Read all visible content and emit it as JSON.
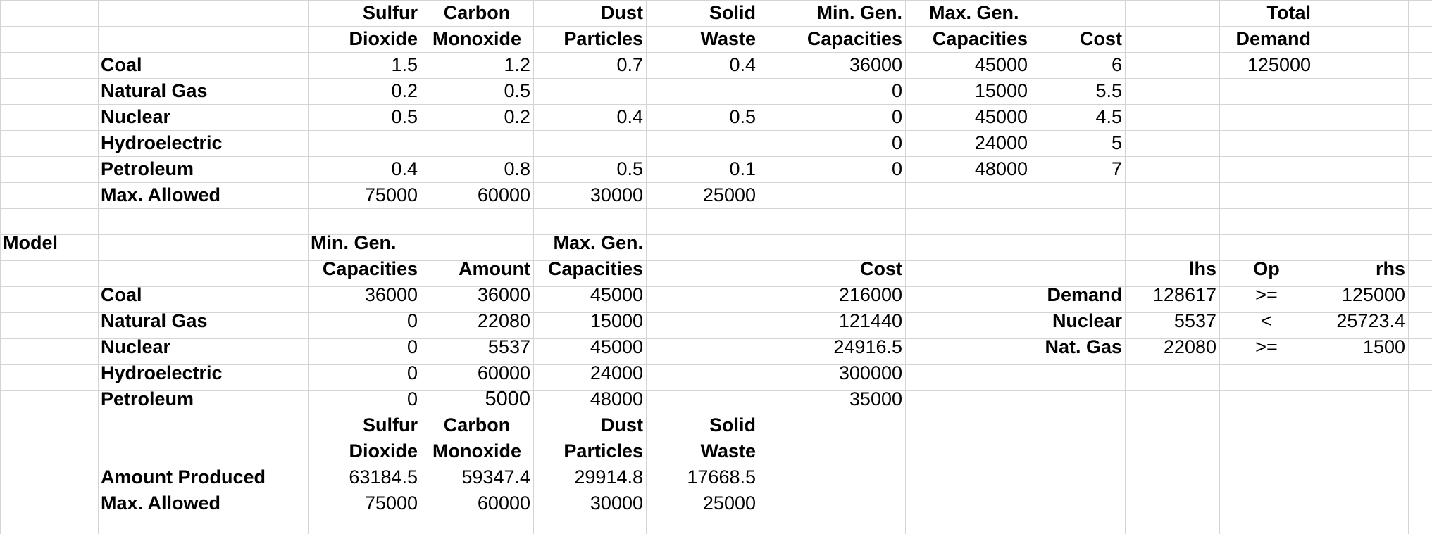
{
  "top_table": {
    "headers": {
      "sulfur_1": "Sulfur",
      "sulfur_2": "Dioxide",
      "carbon_1": "Carbon",
      "carbon_2": "Monoxide",
      "dust_1": "Dust",
      "dust_2": "Particles",
      "solid_1": "Solid",
      "solid_2": "Waste",
      "mingen_1": "Min. Gen.",
      "mingen_2": "Capacities",
      "maxgen_1": "Max. Gen.",
      "maxgen_2": "Capacities",
      "cost": "Cost",
      "total_1": "Total",
      "total_2": "Demand"
    },
    "rows": [
      {
        "label": "Coal",
        "so2": "1.5",
        "co": "1.2",
        "dust": "0.7",
        "waste": "0.4",
        "min": "36000",
        "max": "45000",
        "cost": "6",
        "demand": "125000"
      },
      {
        "label": "Natural Gas",
        "so2": "0.2",
        "co": "0.5",
        "dust": "",
        "waste": "",
        "min": "0",
        "max": "15000",
        "cost": "5.5",
        "demand": ""
      },
      {
        "label": "Nuclear",
        "so2": "0.5",
        "co": "0.2",
        "dust": "0.4",
        "waste": "0.5",
        "min": "0",
        "max": "45000",
        "cost": "4.5",
        "demand": ""
      },
      {
        "label": "Hydroelectric",
        "so2": "",
        "co": "",
        "dust": "",
        "waste": "",
        "min": "0",
        "max": "24000",
        "cost": "5",
        "demand": ""
      },
      {
        "label": "Petroleum",
        "so2": "0.4",
        "co": "0.8",
        "dust": "0.5",
        "waste": "0.1",
        "min": "0",
        "max": "48000",
        "cost": "7",
        "demand": ""
      }
    ],
    "max_allowed": {
      "label": "Max. Allowed",
      "so2": "75000",
      "co": "60000",
      "dust": "30000",
      "waste": "25000"
    }
  },
  "model": {
    "title": "Model",
    "headers": {
      "mingen_1": "Min. Gen.",
      "mingen_2": "Capacities",
      "amount": "Amount",
      "maxgen_1": "Max. Gen.",
      "maxgen_2": "Capacities",
      "cost": "Cost"
    },
    "rows": [
      {
        "label": "Coal",
        "min": "36000",
        "amount": "36000",
        "max": "45000",
        "cost": "216000"
      },
      {
        "label": "Natural Gas",
        "min": "0",
        "amount": "22080",
        "max": "15000",
        "cost": "121440"
      },
      {
        "label": "Nuclear",
        "min": "0",
        "amount": "5537",
        "max": "45000",
        "cost": "24916.5"
      },
      {
        "label": "Hydroelectric",
        "min": "0",
        "amount": "60000",
        "max": "24000",
        "cost": "300000"
      },
      {
        "label": "Petroleum",
        "min": "0",
        "amount": "5000",
        "max": "48000",
        "cost": "35000"
      }
    ],
    "emission_headers": {
      "sulfur_1": "Sulfur",
      "sulfur_2": "Dioxide",
      "carbon_1": "Carbon",
      "carbon_2": "Monoxide",
      "dust_1": "Dust",
      "dust_2": "Particles",
      "solid_1": "Solid",
      "solid_2": "Waste"
    },
    "amount_produced": {
      "label": "Amount Produced",
      "so2": "63184.5",
      "co": "59347.4",
      "dust": "29914.8",
      "waste": "17668.5"
    },
    "max_allowed": {
      "label": "Max. Allowed",
      "so2": "75000",
      "co": "60000",
      "dust": "30000",
      "waste": "25000"
    },
    "constraints": {
      "headers": {
        "lhs": "lhs",
        "op": "Op",
        "rhs": "rhs"
      },
      "rows": [
        {
          "label": "Demand",
          "lhs": "128617",
          "op": ">=",
          "rhs": "125000"
        },
        {
          "label": "Nuclear",
          "lhs": "5537",
          "op": "<",
          "rhs": "25723.4"
        },
        {
          "label": "Nat. Gas",
          "lhs": "22080",
          "op": ">=",
          "rhs": "1500"
        }
      ]
    }
  }
}
